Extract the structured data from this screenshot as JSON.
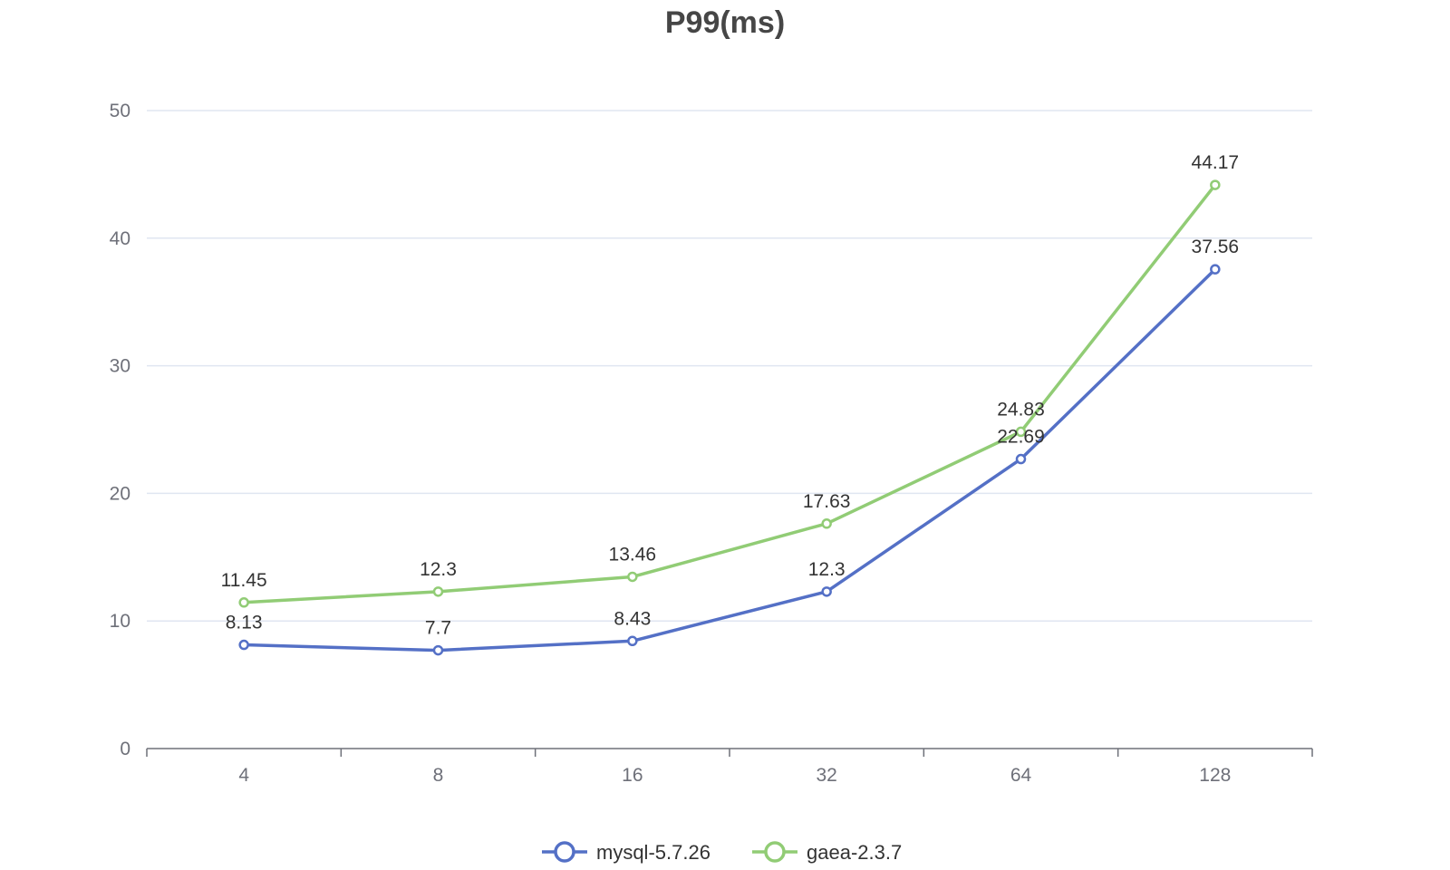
{
  "chart_data": {
    "type": "line",
    "title": "P99(ms)",
    "xlabel": "",
    "ylabel": "",
    "categories": [
      "4",
      "8",
      "16",
      "32",
      "64",
      "128"
    ],
    "ylim": [
      0,
      50
    ],
    "yticks": [
      0,
      10,
      20,
      30,
      40,
      50
    ],
    "grid": true,
    "legend_position": "bottom-center",
    "series": [
      {
        "name": "mysql-5.7.26",
        "color": "#5470c6",
        "values": [
          8.13,
          7.7,
          8.43,
          12.3,
          22.69,
          37.56
        ],
        "labels": [
          "8.13",
          "7.7",
          "8.43",
          "12.3",
          "22.69",
          "37.56"
        ]
      },
      {
        "name": "gaea-2.3.7",
        "color": "#91cc75",
        "values": [
          11.45,
          12.3,
          13.46,
          17.63,
          24.83,
          44.17
        ],
        "labels": [
          "11.45",
          "12.3",
          "13.46",
          "17.63",
          "24.83",
          "44.17"
        ]
      }
    ]
  }
}
